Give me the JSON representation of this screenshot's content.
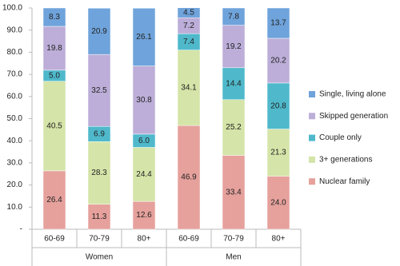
{
  "chart_data": {
    "type": "stacked_bar",
    "groups": [
      {
        "name": "Women",
        "categories": [
          "60-69",
          "70-79",
          "80+"
        ]
      },
      {
        "name": "Men",
        "categories": [
          "60-69",
          "70-79",
          "80+"
        ]
      }
    ],
    "series": [
      {
        "name": "Nuclear family",
        "color": "#e6a19c",
        "values": [
          26.4,
          11.3,
          12.6,
          46.9,
          33.4,
          24.0
        ],
        "value_labels": [
          "26.4",
          "11.3",
          "12.6",
          "46.9",
          "33.4",
          "24.0"
        ]
      },
      {
        "name": "3+ generations",
        "color": "#d5e4a8",
        "values": [
          40.5,
          28.3,
          24.4,
          34.1,
          25.2,
          21.3
        ],
        "value_labels": [
          "40.5",
          "28.3",
          "24.4",
          "34.1",
          "25.2",
          "21.3"
        ]
      },
      {
        "name": "Couple only",
        "color": "#4fb9cb",
        "values": [
          5.0,
          6.9,
          6.0,
          7.4,
          14.4,
          20.8
        ],
        "value_labels": [
          "5.0",
          "6.9",
          "6.0",
          "7.4",
          "14.4",
          "20.8"
        ]
      },
      {
        "name": "Skipped generation",
        "color": "#bcaed8",
        "values": [
          19.8,
          32.5,
          30.8,
          7.2,
          19.2,
          20.2
        ],
        "value_labels": [
          "19.8",
          "32.5",
          "30.8",
          "7.2",
          "19.2",
          "20.2"
        ]
      },
      {
        "name": "Single, living alone",
        "color": "#6fa3db",
        "values": [
          8.3,
          20.9,
          26.1,
          4.5,
          7.8,
          13.7
        ],
        "value_labels": [
          "8.3",
          "20.9",
          "26.1",
          "4.5",
          "7.8",
          "13.7"
        ]
      }
    ],
    "ylim": [
      0,
      100
    ],
    "yticks": [
      {
        "value": 0,
        "label": "-"
      },
      {
        "value": 10,
        "label": "10.0"
      },
      {
        "value": 20,
        "label": "20.0"
      },
      {
        "value": 30,
        "label": "30.0"
      },
      {
        "value": 40,
        "label": "40.0"
      },
      {
        "value": 50,
        "label": "50.0"
      },
      {
        "value": 60,
        "label": "60.0"
      },
      {
        "value": 70,
        "label": "70.0"
      },
      {
        "value": 80,
        "label": "80.0"
      },
      {
        "value": 90,
        "label": "90.0"
      },
      {
        "value": 100,
        "label": "100.0"
      }
    ],
    "grid": false,
    "legend": "right"
  }
}
